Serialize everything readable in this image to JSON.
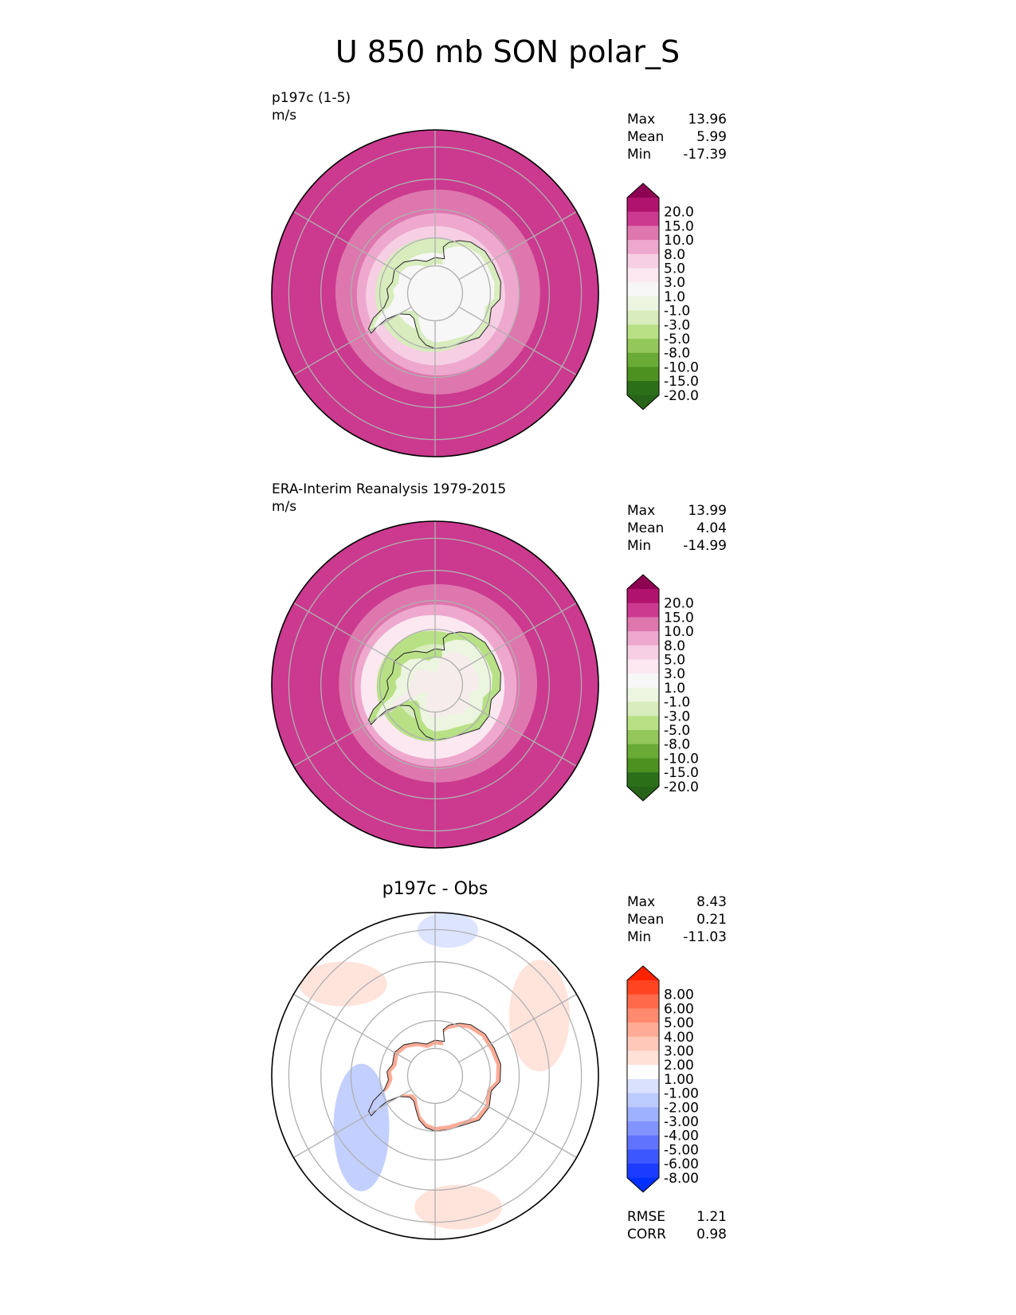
{
  "figure_title": "U 850 mb SON polar_S",
  "chart_data": [
    {
      "type": "heatmap",
      "projection": "south-polar-stereographic",
      "title": "",
      "case_name": "p197c (1-5)",
      "units": "m/s",
      "stats": [
        {
          "label": "Max",
          "value": "13.96"
        },
        {
          "label": "Mean",
          "value": "5.99"
        },
        {
          "label": "Min",
          "value": "-17.39"
        }
      ],
      "colorbar": {
        "levels": [
          "20.0",
          "15.0",
          "10.0",
          "8.0",
          "5.0",
          "3.0",
          "1.0",
          "-1.0",
          "-3.0",
          "-5.0",
          "-8.0",
          "-10.0",
          "-15.0",
          "-20.0"
        ],
        "colors": [
          "#8e0152",
          "#b0136e",
          "#cb3a8f",
          "#de77ae",
          "#eea8ce",
          "#f6cfe4",
          "#fbe8f1",
          "#f7f7f7",
          "#ecf5df",
          "#d8ecbd",
          "#b8e186",
          "#93c75a",
          "#6aab36",
          "#4d9221",
          "#2c6f19",
          "#276419"
        ],
        "extend": "both"
      },
      "field": {
        "outer_ring_value": 12,
        "ring_values_by_latitude": [
          {
            "lat": -50,
            "value": 12
          },
          {
            "lat": -55,
            "value": 9
          },
          {
            "lat": -60,
            "value": 6
          },
          {
            "lat": -65,
            "value": 3
          },
          {
            "lat": -70,
            "value": -4
          },
          {
            "lat": -75,
            "value": 0
          }
        ],
        "land_pattern": "weak-negative-coast"
      },
      "extra_stats": []
    },
    {
      "type": "heatmap",
      "projection": "south-polar-stereographic",
      "title": "",
      "case_name": "ERA-Interim Reanalysis 1979-2015",
      "units": "m/s",
      "stats": [
        {
          "label": "Max",
          "value": "13.99"
        },
        {
          "label": "Mean",
          "value": "4.04"
        },
        {
          "label": "Min",
          "value": "-14.99"
        }
      ],
      "colorbar": {
        "levels": [
          "20.0",
          "15.0",
          "10.0",
          "8.0",
          "5.0",
          "3.0",
          "1.0",
          "-1.0",
          "-3.0",
          "-5.0",
          "-8.0",
          "-10.0",
          "-15.0",
          "-20.0"
        ],
        "colors": [
          "#8e0152",
          "#b0136e",
          "#cb3a8f",
          "#de77ae",
          "#eea8ce",
          "#f6cfe4",
          "#fbe8f1",
          "#f7f7f7",
          "#ecf5df",
          "#d8ecbd",
          "#b8e186",
          "#93c75a",
          "#6aab36",
          "#4d9221",
          "#2c6f19",
          "#276419"
        ],
        "extend": "both"
      },
      "field": {
        "outer_ring_value": 12,
        "ring_values_by_latitude": [
          {
            "lat": -50,
            "value": 12
          },
          {
            "lat": -55,
            "value": 9
          },
          {
            "lat": -60,
            "value": 6
          },
          {
            "lat": -65,
            "value": 2
          },
          {
            "lat": -70,
            "value": -6
          },
          {
            "lat": -75,
            "value": -4
          }
        ],
        "land_pattern": "negative-interior"
      },
      "extra_stats": []
    },
    {
      "type": "heatmap",
      "projection": "south-polar-stereographic",
      "title": "p197c - Obs",
      "case_name": "",
      "units": "",
      "stats": [
        {
          "label": "Max",
          "value": "8.43"
        },
        {
          "label": "Mean",
          "value": "0.21"
        },
        {
          "label": "Min",
          "value": "-11.03"
        }
      ],
      "colorbar": {
        "levels": [
          "8.00",
          "6.00",
          "5.00",
          "4.00",
          "3.00",
          "2.00",
          "1.00",
          "-1.00",
          "-2.00",
          "-3.00",
          "-4.00",
          "-5.00",
          "-6.00",
          "-8.00"
        ],
        "colors": [
          "#ff2200",
          "#ff4422",
          "#ff6a4a",
          "#ff8a6e",
          "#ffab96",
          "#ffc8b8",
          "#ffe1d8",
          "#ffffff",
          "#d9e1ff",
          "#bccbff",
          "#9eb1ff",
          "#8093ff",
          "#6073ff",
          "#3d57ff",
          "#1b3cff",
          "#0030ff"
        ],
        "extend": "both"
      },
      "field": {
        "outer_ring_value": 0,
        "ring_values_by_latitude": [
          {
            "lat": -50,
            "value": 0.5
          },
          {
            "lat": -65,
            "value": 0.2
          }
        ],
        "land_pattern": "coastal-positive"
      },
      "extra_stats": [
        {
          "label": "RMSE",
          "value": "1.21"
        },
        {
          "label": "CORR",
          "value": "0.98"
        }
      ]
    }
  ]
}
